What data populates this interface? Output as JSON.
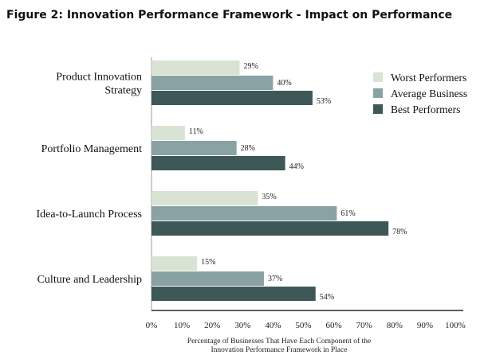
{
  "chart_data": {
    "type": "bar",
    "orientation": "horizontal",
    "title": "Figure 2: Innovation Performance Framework - Impact on Performance",
    "xlabel": [
      "Percentage of Businesses That Have Each Component of the",
      "Innovation Performance Framework in Place"
    ],
    "categories": [
      [
        "Product Innovation",
        "Strategy"
      ],
      [
        "Portfolio Management"
      ],
      [
        "Idea-to-Launch Process"
      ],
      [
        "Culture and Leadership"
      ]
    ],
    "xlim": [
      0,
      100
    ],
    "ticks": [
      "0%",
      "10%",
      "20%",
      "30%",
      "40%",
      "50%",
      "60%",
      "70%",
      "80%",
      "90%",
      "100%"
    ],
    "legend_position": "right",
    "grid": false,
    "series": [
      {
        "name": "Worst Performers",
        "color": "#d9e3d3",
        "values": [
          29,
          11,
          35,
          15
        ],
        "labels": [
          "29%",
          "11%",
          "35%",
          "15%"
        ]
      },
      {
        "name": "Average Business",
        "color": "#89a2a3",
        "values": [
          40,
          28,
          61,
          37
        ],
        "labels": [
          "40%",
          "28%",
          "61%",
          "37%"
        ]
      },
      {
        "name": "Best Performers",
        "color": "#3e5858",
        "values": [
          53,
          44,
          78,
          54
        ],
        "labels": [
          "53%",
          "44%",
          "78%",
          "54%"
        ]
      }
    ]
  }
}
